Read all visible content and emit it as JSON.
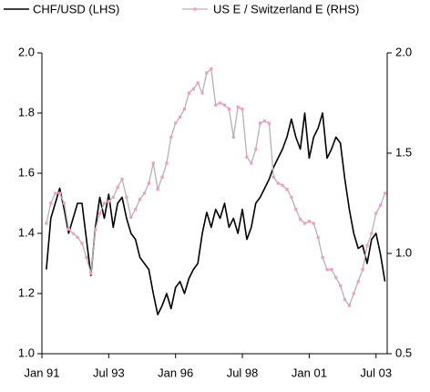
{
  "chart_data": {
    "type": "line",
    "x": [
      "1991-03",
      "1991-05",
      "1991-07",
      "1991-09",
      "1991-11",
      "1992-01",
      "1992-03",
      "1992-05",
      "1992-07",
      "1992-09",
      "1992-11",
      "1993-01",
      "1993-03",
      "1993-05",
      "1993-07",
      "1993-09",
      "1993-11",
      "1994-01",
      "1994-03",
      "1994-05",
      "1994-07",
      "1994-09",
      "1994-11",
      "1995-01",
      "1995-03",
      "1995-05",
      "1995-07",
      "1995-09",
      "1995-11",
      "1996-01",
      "1996-03",
      "1996-05",
      "1996-07",
      "1996-09",
      "1996-11",
      "1997-01",
      "1997-03",
      "1997-05",
      "1997-07",
      "1997-09",
      "1997-11",
      "1998-01",
      "1998-03",
      "1998-05",
      "1998-07",
      "1998-09",
      "1998-11",
      "1999-01",
      "1999-03",
      "1999-05",
      "1999-07",
      "1999-09",
      "1999-11",
      "2000-01",
      "2000-03",
      "2000-05",
      "2000-07",
      "2000-09",
      "2000-11",
      "2001-01",
      "2001-03",
      "2001-05",
      "2001-07",
      "2001-09",
      "2001-11",
      "2002-01",
      "2002-03",
      "2002-05",
      "2002-07",
      "2002-09",
      "2002-11",
      "2003-01",
      "2003-03",
      "2003-05",
      "2003-07",
      "2003-09",
      "2003-11"
    ],
    "series": [
      {
        "name": "CHF/USD (LHS)",
        "color": "#000000",
        "axis": "y",
        "values": [
          1.28,
          1.45,
          1.5,
          1.55,
          1.48,
          1.4,
          1.45,
          1.5,
          1.5,
          1.38,
          1.26,
          1.42,
          1.52,
          1.45,
          1.53,
          1.42,
          1.5,
          1.52,
          1.45,
          1.4,
          1.38,
          1.32,
          1.3,
          1.28,
          1.2,
          1.13,
          1.16,
          1.2,
          1.15,
          1.22,
          1.24,
          1.2,
          1.25,
          1.28,
          1.3,
          1.4,
          1.47,
          1.42,
          1.48,
          1.45,
          1.5,
          1.42,
          1.45,
          1.4,
          1.48,
          1.38,
          1.42,
          1.5,
          1.52,
          1.55,
          1.58,
          1.62,
          1.65,
          1.68,
          1.72,
          1.78,
          1.72,
          1.68,
          1.8,
          1.65,
          1.72,
          1.75,
          1.8,
          1.65,
          1.68,
          1.72,
          1.7,
          1.58,
          1.48,
          1.4,
          1.35,
          1.36,
          1.3,
          1.38,
          1.4,
          1.33,
          1.24
        ]
      },
      {
        "name": "US E / Switzerland E (RHS)",
        "color": "#b3b3b3",
        "marker_color": "#f59ac8",
        "axis": "y2",
        "values": [
          1.15,
          1.25,
          1.3,
          1.3,
          1.25,
          1.12,
          1.1,
          1.08,
          1.05,
          0.98,
          0.9,
          1.12,
          1.2,
          1.25,
          1.26,
          1.28,
          1.33,
          1.37,
          1.28,
          1.18,
          1.22,
          1.27,
          1.3,
          1.35,
          1.45,
          1.32,
          1.38,
          1.45,
          1.58,
          1.65,
          1.68,
          1.72,
          1.8,
          1.82,
          1.85,
          1.8,
          1.9,
          1.92,
          1.74,
          1.75,
          1.74,
          1.72,
          1.58,
          1.73,
          1.72,
          1.48,
          1.45,
          1.52,
          1.65,
          1.66,
          1.65,
          1.38,
          1.35,
          1.34,
          1.32,
          1.28,
          1.22,
          1.17,
          1.15,
          1.16,
          1.15,
          1.08,
          0.98,
          0.92,
          0.92,
          0.88,
          0.84,
          0.77,
          0.74,
          0.8,
          0.86,
          0.92,
          1.04,
          1.1,
          1.2,
          1.24,
          1.3
        ]
      }
    ],
    "xlim": [
      "1991-01",
      "2003-12"
    ],
    "xticks": [
      {
        "value": "1991-01",
        "label": "Jan 91"
      },
      {
        "value": "1993-07",
        "label": "Jul 93"
      },
      {
        "value": "1996-01",
        "label": "Jan 96"
      },
      {
        "value": "1998-07",
        "label": "Jul 98"
      },
      {
        "value": "2001-01",
        "label": "Jan 01"
      },
      {
        "value": "2003-07",
        "label": "Jul 03"
      }
    ],
    "ylim": [
      1.0,
      2.0
    ],
    "yticks": [
      {
        "value": 1.0,
        "label": "1.0"
      },
      1.2,
      1.4,
      1.6,
      1.8,
      {
        "value": 2.0,
        "label": "2.0"
      }
    ],
    "y2lim": [
      0.5,
      2.0
    ],
    "y2ticks": [
      0.5,
      {
        "value": 1.0,
        "label": "1.0"
      },
      1.5,
      {
        "value": 2.0,
        "label": "2.0"
      }
    ],
    "legend": "top"
  }
}
